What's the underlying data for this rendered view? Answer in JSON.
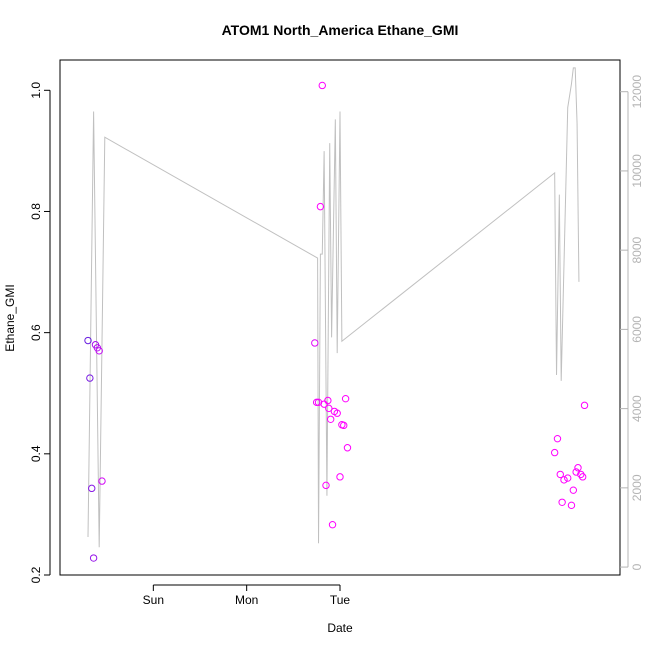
{
  "chart_data": {
    "type": "scatter",
    "title": "ATOM1 North_America Ethane_GMI",
    "xlabel": "Date",
    "ylabel": "Ethane_GMI",
    "x_ticks": [
      "Sun",
      "Mon",
      "Tue"
    ],
    "ylim": [
      0.2,
      1.05
    ],
    "y_ticks": [
      "0.2",
      "0.4",
      "0.6",
      "0.8",
      "1.0"
    ],
    "y2lim": [
      -200,
      12800
    ],
    "y2_ticks": [
      "0",
      "2000",
      "4000",
      "6000",
      "8000",
      "10000",
      "12000"
    ],
    "grid": false,
    "colors": {
      "point_start": "#6a1fe0",
      "point_end": "#ff00ff",
      "secondary_line": "#c0c0c0",
      "secondary_axis": "#b4b4b4",
      "axis": "#000000"
    },
    "series": [
      {
        "values": [
          {
            "x": 0.3,
            "y": 0.587
          },
          {
            "x": 0.32,
            "y": 0.525
          },
          {
            "x": 0.34,
            "y": 0.343
          },
          {
            "x": 0.36,
            "y": 0.228
          },
          {
            "x": 0.38,
            "y": 0.58
          },
          {
            "x": 0.4,
            "y": 0.575
          },
          {
            "x": 0.42,
            "y": 0.57
          },
          {
            "x": 0.45,
            "y": 0.355
          },
          {
            "x": 2.73,
            "y": 0.583
          },
          {
            "x": 2.75,
            "y": 0.485
          },
          {
            "x": 2.77,
            "y": 0.485
          },
          {
            "x": 2.79,
            "y": 0.808
          },
          {
            "x": 2.81,
            "y": 1.008
          },
          {
            "x": 2.83,
            "y": 0.482
          },
          {
            "x": 2.85,
            "y": 0.348
          },
          {
            "x": 2.87,
            "y": 0.488
          },
          {
            "x": 2.88,
            "y": 0.475
          },
          {
            "x": 2.9,
            "y": 0.457
          },
          {
            "x": 2.92,
            "y": 0.283
          },
          {
            "x": 2.94,
            "y": 0.47
          },
          {
            "x": 2.97,
            "y": 0.467
          },
          {
            "x": 3.0,
            "y": 0.362
          },
          {
            "x": 3.02,
            "y": 0.448
          },
          {
            "x": 3.04,
            "y": 0.447
          },
          {
            "x": 3.06,
            "y": 0.491
          },
          {
            "x": 3.08,
            "y": 0.41
          },
          {
            "x": 5.3,
            "y": 0.402
          },
          {
            "x": 5.33,
            "y": 0.425
          },
          {
            "x": 5.36,
            "y": 0.366
          },
          {
            "x": 5.38,
            "y": 0.32
          },
          {
            "x": 5.4,
            "y": 0.357
          },
          {
            "x": 5.44,
            "y": 0.36
          },
          {
            "x": 5.48,
            "y": 0.315
          },
          {
            "x": 5.5,
            "y": 0.34
          },
          {
            "x": 5.53,
            "y": 0.37
          },
          {
            "x": 5.55,
            "y": 0.377
          },
          {
            "x": 5.58,
            "y": 0.366
          },
          {
            "x": 5.6,
            "y": 0.362
          },
          {
            "x": 5.62,
            "y": 0.48
          }
        ]
      },
      {
        "axis": "right",
        "type": "line",
        "values": [
          {
            "x": 0.3,
            "y": 760
          },
          {
            "x": 0.36,
            "y": 11500
          },
          {
            "x": 0.42,
            "y": 500
          },
          {
            "x": 0.48,
            "y": 10850
          },
          {
            "x": 2.76,
            "y": 7800
          },
          {
            "x": 2.77,
            "y": 600
          },
          {
            "x": 2.79,
            "y": 7900
          },
          {
            "x": 2.81,
            "y": 7900
          },
          {
            "x": 2.83,
            "y": 10500
          },
          {
            "x": 2.86,
            "y": 1800
          },
          {
            "x": 2.89,
            "y": 10700
          },
          {
            "x": 2.91,
            "y": 5800
          },
          {
            "x": 2.95,
            "y": 11300
          },
          {
            "x": 2.97,
            "y": 5400
          },
          {
            "x": 3.0,
            "y": 11500
          },
          {
            "x": 3.02,
            "y": 5700
          },
          {
            "x": 5.3,
            "y": 9950
          },
          {
            "x": 5.32,
            "y": 4850
          },
          {
            "x": 5.35,
            "y": 9400
          },
          {
            "x": 5.37,
            "y": 4700
          },
          {
            "x": 5.44,
            "y": 11600
          },
          {
            "x": 5.48,
            "y": 12200
          },
          {
            "x": 5.5,
            "y": 12600
          },
          {
            "x": 5.52,
            "y": 12600
          },
          {
            "x": 5.54,
            "y": 11200
          },
          {
            "x": 5.56,
            "y": 7200
          }
        ]
      }
    ]
  }
}
